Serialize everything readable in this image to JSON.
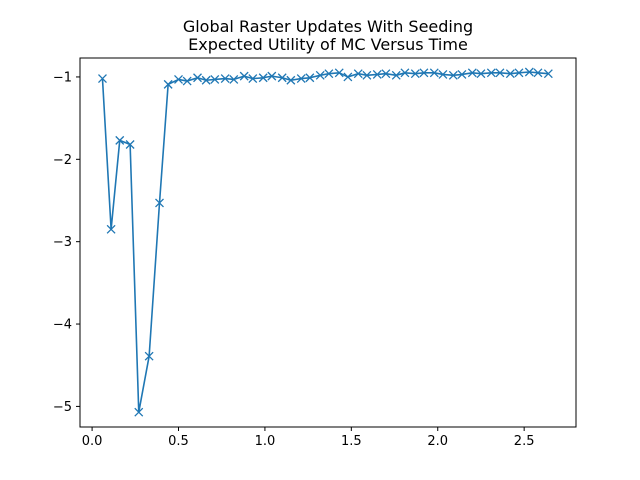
{
  "chart_data": {
    "type": "line",
    "title_line1": "Global Raster Updates With Seeding",
    "title_line2": "Expected Utility of MC Versus Time",
    "xlabel": "",
    "ylabel": "",
    "xlim": [
      -0.07,
      2.8
    ],
    "ylim": [
      -5.25,
      -0.77
    ],
    "x_ticks": [
      0.0,
      0.5,
      1.0,
      1.5,
      2.0,
      2.5
    ],
    "x_tick_labels": [
      "0.0",
      "0.5",
      "1.0",
      "1.5",
      "2.0",
      "2.5"
    ],
    "y_ticks": [
      -1,
      -2,
      -3,
      -4,
      -5
    ],
    "y_tick_labels": [
      "−1",
      "−2",
      "−3",
      "−4",
      "−5"
    ],
    "grid": false,
    "legend": "none",
    "series": [
      {
        "color": "#1f77b4",
        "marker": "x",
        "x": [
          0.06,
          0.11,
          0.16,
          0.22,
          0.27,
          0.33,
          0.39,
          0.44,
          0.5,
          0.55,
          0.61,
          0.66,
          0.71,
          0.77,
          0.82,
          0.88,
          0.93,
          0.99,
          1.04,
          1.1,
          1.15,
          1.21,
          1.26,
          1.32,
          1.37,
          1.43,
          1.48,
          1.54,
          1.59,
          1.65,
          1.7,
          1.76,
          1.81,
          1.87,
          1.92,
          1.98,
          2.03,
          2.09,
          2.14,
          2.2,
          2.25,
          2.31,
          2.36,
          2.42,
          2.47,
          2.53,
          2.58,
          2.64
        ],
        "y": [
          -1.02,
          -2.85,
          -1.77,
          -1.82,
          -5.07,
          -4.39,
          -2.53,
          -1.09,
          -1.03,
          -1.05,
          -1.01,
          -1.04,
          -1.03,
          -1.02,
          -1.03,
          -0.99,
          -1.02,
          -1.01,
          -0.99,
          -1.01,
          -1.04,
          -1.02,
          -1.01,
          -0.98,
          -0.96,
          -0.95,
          -1.0,
          -0.96,
          -0.98,
          -0.97,
          -0.96,
          -0.98,
          -0.95,
          -0.96,
          -0.95,
          -0.95,
          -0.97,
          -0.98,
          -0.97,
          -0.95,
          -0.96,
          -0.95,
          -0.95,
          -0.96,
          -0.95,
          -0.94,
          -0.95,
          -0.96
        ]
      }
    ]
  }
}
